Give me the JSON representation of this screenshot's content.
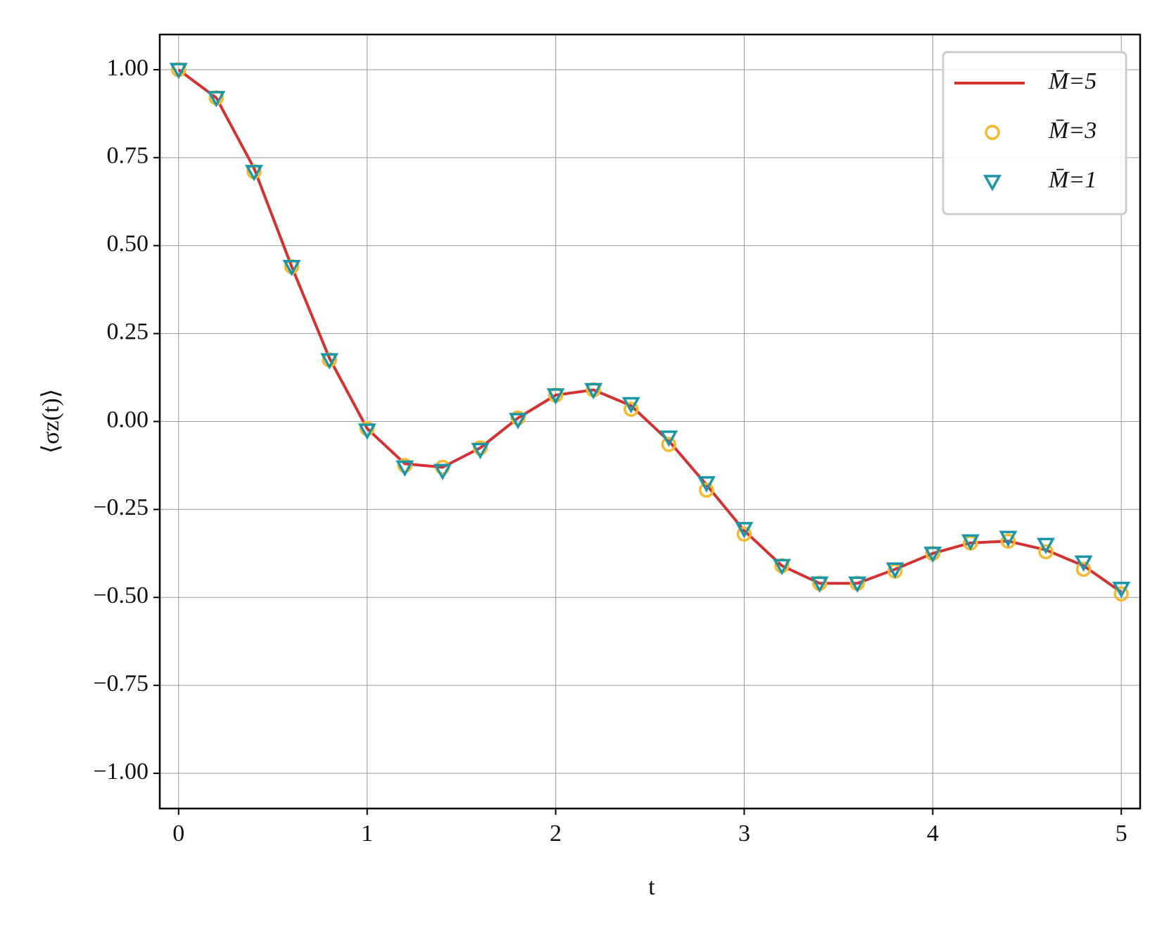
{
  "chart_data": {
    "type": "line",
    "x_label": "t",
    "y_label": "⟨σz(t)⟩",
    "x": [
      0,
      0.2,
      0.4,
      0.6,
      0.8,
      1.0,
      1.2,
      1.4,
      1.6,
      1.8,
      2.0,
      2.2,
      2.4,
      2.6,
      2.8,
      3.0,
      3.2,
      3.4,
      3.6,
      3.8,
      4.0,
      4.2,
      4.4,
      4.6,
      4.8,
      5.0
    ],
    "series": [
      {
        "name": "M̄=5",
        "color": "#d33232",
        "marker": "line",
        "values": [
          1.0,
          0.92,
          0.72,
          0.44,
          0.18,
          -0.02,
          -0.12,
          -0.13,
          -0.075,
          0.01,
          0.075,
          0.09,
          0.045,
          -0.055,
          -0.18,
          -0.31,
          -0.41,
          -0.46,
          -0.46,
          -0.42,
          -0.375,
          -0.345,
          -0.34,
          -0.365,
          -0.41,
          -0.485
        ]
      },
      {
        "name": "M̄=3",
        "color": "#f5b82e",
        "marker": "circle",
        "values": [
          1.0,
          0.92,
          0.71,
          0.44,
          0.175,
          -0.02,
          -0.125,
          -0.13,
          -0.075,
          0.01,
          0.075,
          0.09,
          0.035,
          -0.065,
          -0.195,
          -0.32,
          -0.41,
          -0.46,
          -0.46,
          -0.425,
          -0.375,
          -0.345,
          -0.34,
          -0.37,
          -0.42,
          -0.49
        ]
      },
      {
        "name": "M̄=1",
        "color": "#1a96a6",
        "marker": "triangle_down",
        "values": [
          1.0,
          0.92,
          0.71,
          0.44,
          0.175,
          -0.025,
          -0.13,
          -0.14,
          -0.08,
          0.005,
          0.075,
          0.09,
          0.05,
          -0.045,
          -0.175,
          -0.305,
          -0.41,
          -0.46,
          -0.46,
          -0.42,
          -0.375,
          -0.34,
          -0.33,
          -0.35,
          -0.4,
          -0.475
        ]
      }
    ],
    "xlim": [
      -0.1,
      5.1
    ],
    "ylim": [
      -1.1,
      1.1
    ],
    "xticks": [
      0,
      1,
      2,
      3,
      4,
      5
    ],
    "yticks": [
      {
        "value": 1,
        "label": "1.00"
      },
      {
        "value": 0.75,
        "label": "0.75"
      },
      {
        "value": 0.5,
        "label": "0.50"
      },
      {
        "value": 0.25,
        "label": "0.25"
      },
      {
        "value": 0,
        "label": "0.00"
      },
      {
        "value": -0.25,
        "label": "−0.25"
      },
      {
        "value": -0.5,
        "label": "−0.50"
      },
      {
        "value": -0.75,
        "label": "−0.75"
      },
      {
        "value": -1,
        "label": "−1.00"
      }
    ],
    "grid": true,
    "legend": "upper right"
  }
}
